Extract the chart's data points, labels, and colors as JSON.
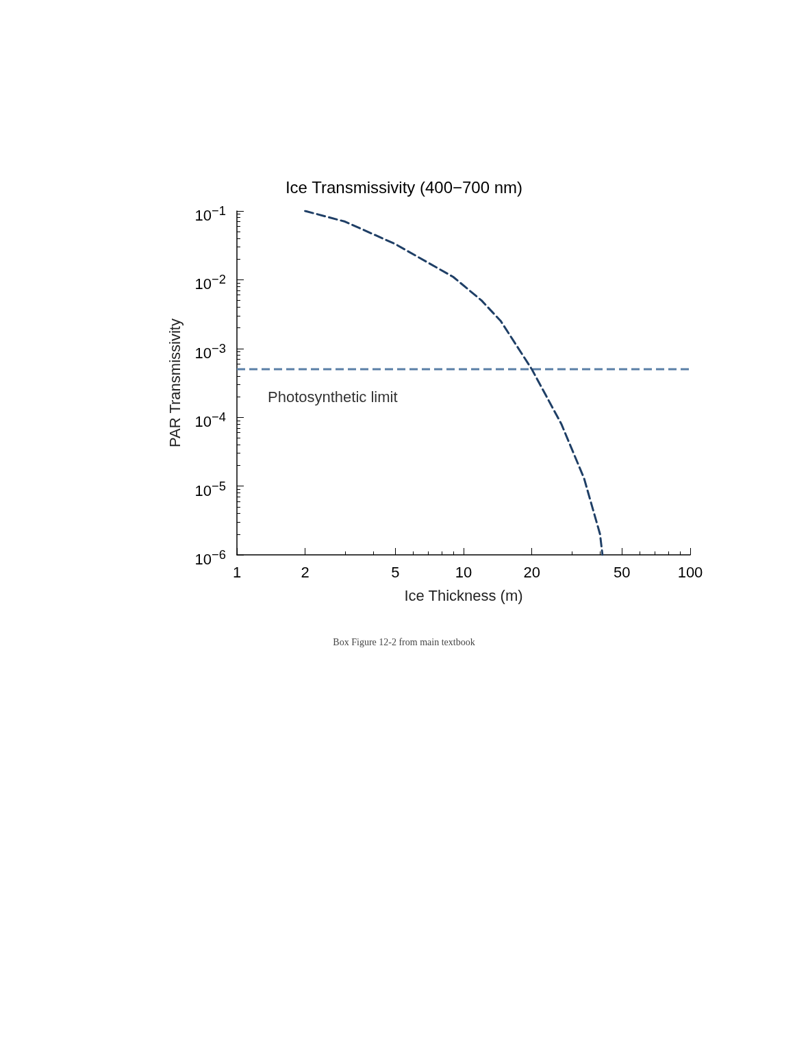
{
  "chart_data": {
    "type": "line",
    "title": "Ice Transmissivity (400−700 nm)",
    "xlabel": "Ice Thickness (m)",
    "ylabel": "PAR Transmissivity",
    "log": "xy",
    "xlim": [
      1,
      100
    ],
    "xticks": [
      1,
      2,
      5,
      10,
      20,
      50,
      100
    ],
    "ylim": [
      1e-06,
      0.1
    ],
    "yticks": [
      {
        "value": 1e-06,
        "label": "10$^{−6}$"
      },
      {
        "value": 1e-05,
        "label": "10$^{−5}$"
      },
      {
        "value": 0.0001,
        "label": "10$^{−4}$"
      },
      {
        "value": 0.001,
        "label": "10$^{−3}$"
      },
      {
        "value": 0.01,
        "label": "10$^{−2}$"
      },
      {
        "value": 0.1,
        "label": "10$^{−1}$"
      }
    ],
    "grid": false,
    "marker": "none",
    "line_style": "dashed",
    "series": [
      {
        "color": "#1f3f66",
        "x": [
          2,
          3,
          5,
          9,
          12,
          14.6,
          20,
          27,
          34,
          40,
          41
        ],
        "values": [
          0.1,
          0.07,
          0.033,
          0.011,
          0.005,
          0.0025,
          0.0005,
          8e-05,
          1.3e-05,
          2e-06,
          1e-06
        ]
      }
    ],
    "ref_lines": [
      {
        "axis": "y",
        "value": 0.0005,
        "label": "Photosynthetic limit",
        "color": "#5a7fa6",
        "line_style": "dashed"
      }
    ],
    "annotations": [
      "Box Figure 12-2 from main textbook"
    ]
  }
}
